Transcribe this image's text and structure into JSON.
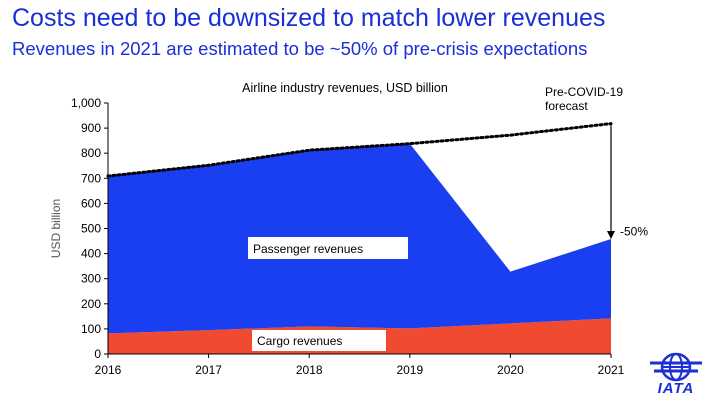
{
  "header": {
    "title": "Costs need to be downsized to match lower revenues",
    "subtitle": "Revenues in 2021 are estimated to be ~50% of pre-crisis expectations"
  },
  "chart_data": {
    "type": "area",
    "title": "Airline industry revenues, USD billion",
    "xlabel": "",
    "ylabel": "USD billion",
    "x": [
      2016,
      2017,
      2018,
      2019,
      2020,
      2021
    ],
    "xticklabels": [
      "2016",
      "2017",
      "2018",
      "2019",
      "2020",
      "2021"
    ],
    "ylim": [
      0,
      1000
    ],
    "yticks": [
      0,
      100,
      200,
      300,
      400,
      500,
      600,
      700,
      800,
      900,
      1000
    ],
    "yticklabels": [
      "0",
      "100",
      "200",
      "300",
      "400",
      "500",
      "600",
      "700",
      "800",
      "900",
      "1,000"
    ],
    "series": [
      {
        "name": "Cargo revenues",
        "color": "#f04a30",
        "values": [
          82,
          95,
          110,
          102,
          122,
          142
        ]
      },
      {
        "name": "Passenger revenues",
        "color": "#1a3ff0",
        "values": [
          627,
          657,
          702,
          736,
          206,
          316
        ]
      }
    ],
    "totals": [
      709,
      752,
      812,
      838,
      328,
      458
    ],
    "forecast": {
      "name": "Pre-COVID-19 forecast",
      "label": "Pre-COVID-19\nforecast",
      "x": [
        2016,
        2017,
        2018,
        2019,
        2020,
        2021
      ],
      "values": [
        709,
        752,
        812,
        838,
        872,
        918
      ]
    },
    "annotation": {
      "text": "-50%",
      "x": 2021,
      "from": 918,
      "to": 458
    }
  },
  "logo": {
    "text": "IATA",
    "color": "#1a2fd6"
  }
}
